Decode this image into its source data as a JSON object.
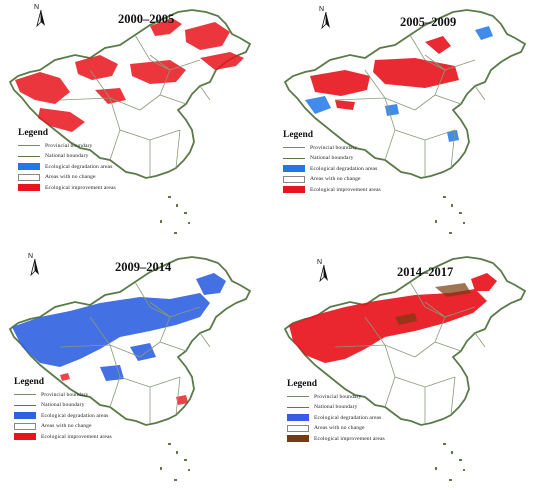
{
  "panels": [
    {
      "title": "2000–2005",
      "legend": {
        "heading": "Legend",
        "items": [
          {
            "label": "Provincial  boundary",
            "kind": "line",
            "color": "#8a9a7a"
          },
          {
            "label": "National boundary",
            "kind": "line",
            "color": "#5a7a4a"
          },
          {
            "label": "Ecological degradation areas",
            "kind": "box",
            "color": "#1f77e8"
          },
          {
            "label": "Areas with no change",
            "kind": "box",
            "color": "#ffffff"
          },
          {
            "label": "Ecological improvement areas",
            "kind": "box",
            "color": "#e8141c"
          }
        ]
      },
      "dominant_color": "#e8141c"
    },
    {
      "title": "2005–2009",
      "legend": {
        "heading": "Legend",
        "items": [
          {
            "label": "Provincial  boundary",
            "kind": "line",
            "color": "#8a9a7a"
          },
          {
            "label": "National boundary",
            "kind": "line",
            "color": "#5a7a4a"
          },
          {
            "label": "Ecological degradation areas",
            "kind": "box",
            "color": "#1f77e8"
          },
          {
            "label": "Areas with no change",
            "kind": "box",
            "color": "#ffffff"
          },
          {
            "label": "Ecological improvement areas",
            "kind": "box",
            "color": "#e8141c"
          }
        ]
      },
      "dominant_color": "#e8141c"
    },
    {
      "title": "2009–2014",
      "legend": {
        "heading": "Legend",
        "items": [
          {
            "label": "Provincial  boundary",
            "kind": "line",
            "color": "#8a9a7a"
          },
          {
            "label": "National boundary",
            "kind": "line",
            "color": "#5a7a4a"
          },
          {
            "label": "Ecological degradation areas",
            "kind": "box",
            "color": "#2f62e0"
          },
          {
            "label": "Areas with no change",
            "kind": "box",
            "color": "#ffffff"
          },
          {
            "label": "Ecological improvement areas",
            "kind": "box",
            "color": "#e8141c"
          }
        ]
      },
      "dominant_color": "#2f62e0"
    },
    {
      "title": "2014–2017",
      "legend": {
        "heading": "Legend",
        "items": [
          {
            "label": "Provincial  boundary",
            "kind": "line",
            "color": "#8a9a7a"
          },
          {
            "label": "National boundary",
            "kind": "line",
            "color": "#5a7a4a"
          },
          {
            "label": "Ecological degradation areas",
            "kind": "box",
            "color": "#3a5ae8"
          },
          {
            "label": "Areas with no change",
            "kind": "box",
            "color": "#ffffff"
          },
          {
            "label": "Ecological improvement areas",
            "kind": "box",
            "color": "#7a3a10"
          }
        ]
      },
      "dominant_color": "#e8141c"
    }
  ],
  "north_label": "N"
}
